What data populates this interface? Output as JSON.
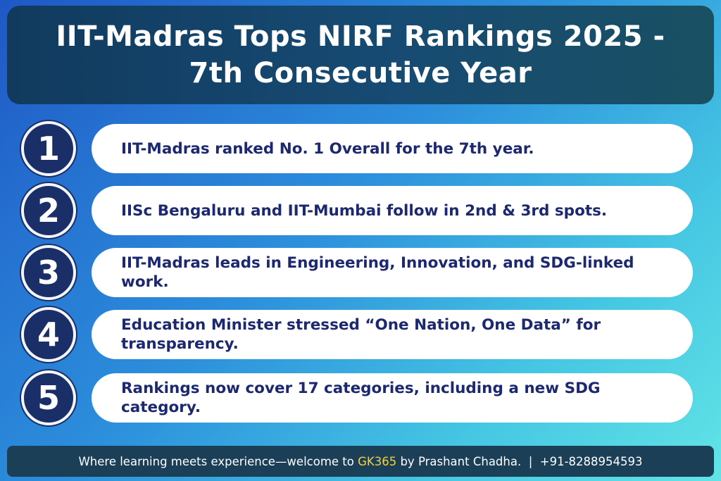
{
  "header": {
    "line1": "IIT-Madras Tops NIRF Rankings 2025 -",
    "line2": "7th Consecutive Year"
  },
  "points": [
    {
      "number": "1",
      "text": "IIT-Madras ranked No. 1 Overall for the 7th year."
    },
    {
      "number": "2",
      "text": "IISc Bengaluru and IIT-Mumbai follow in 2nd & 3rd spots."
    },
    {
      "number": "3",
      "text": "IIT-Madras leads in Engineering, Innovation, and SDG-linked work."
    },
    {
      "number": "4",
      "text": "Education Minister stressed “One Nation, One Data” for transparency."
    },
    {
      "number": "5",
      "text": "Rankings now cover 17 categories, including a new SDG category."
    }
  ],
  "footer": {
    "prefix": "Where learning meets experience—welcome to ",
    "brand": "GK365",
    "suffix": " by Prashant Chadha.  |  +91-8288954593"
  },
  "colors": {
    "brand_accent": "#f4d23c",
    "badge": "#1a2f67",
    "text_dark": "#1c2870"
  }
}
